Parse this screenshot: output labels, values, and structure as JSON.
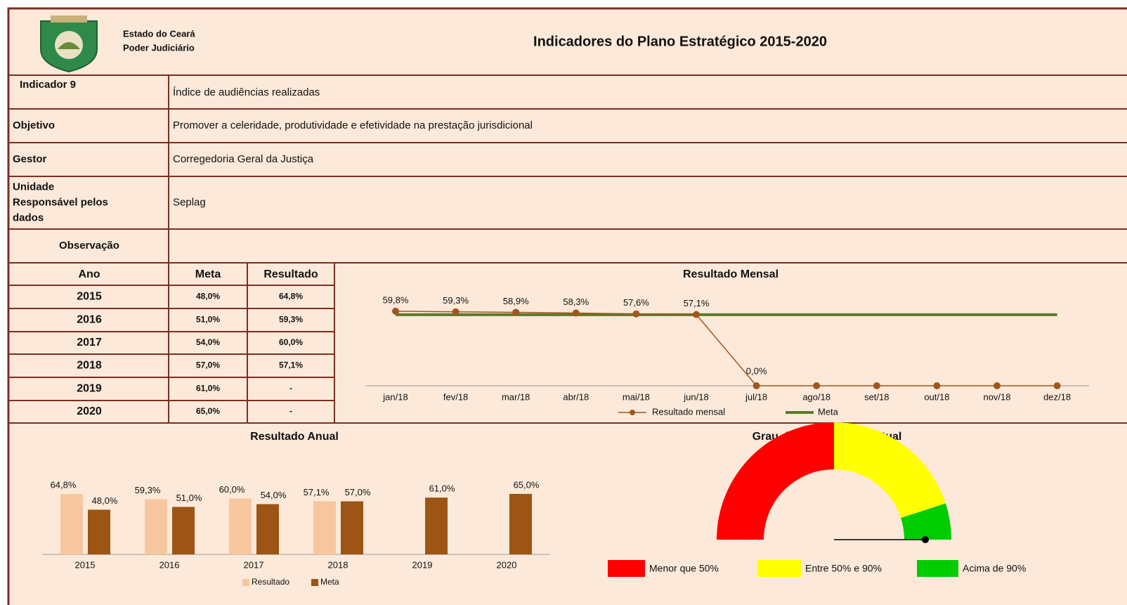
{
  "header": {
    "org_lines": [
      "Estado do Ceará",
      "Poder Judiciário"
    ],
    "title": "Indicadores do Plano Estratégico 2015-2020"
  },
  "info": [
    {
      "label": "Indicador 9",
      "value": "Índice de audiências realizadas"
    },
    {
      "label": "Objetivo",
      "value": "Promover a celeridade, produtividade e efetividade na prestação jurisdicional"
    },
    {
      "label": "Gestor",
      "value": "Corregedoria Geral da Justiça"
    },
    {
      "label": [
        "Unidade",
        "Responsável pelos",
        "dados"
      ],
      "value": "Seplag"
    },
    {
      "label": "Observação"
    }
  ],
  "table": {
    "header": [
      "Ano",
      "Meta",
      "Resultado"
    ],
    "rows": [
      [
        "2015",
        "48,0%",
        "64,8%"
      ],
      [
        "2016",
        "51,0%",
        "59,3%"
      ],
      [
        "2017",
        "54,0%",
        "60,0%"
      ],
      [
        "2018",
        "57,0%",
        "57,1%"
      ],
      [
        "2019",
        "61,0%",
        "-"
      ],
      [
        "2020",
        "65,0%",
        "-"
      ]
    ]
  },
  "chart_data": [
    {
      "type": "line",
      "title": "Resultado Mensal",
      "categories": [
        "jan/18",
        "fev/18",
        "mar/18",
        "abr/18",
        "mai/18",
        "jun/18",
        "jul/18",
        "ago/18",
        "set/18",
        "out/18",
        "nov/18",
        "dez/18"
      ],
      "ylim": [
        0,
        80
      ],
      "series": [
        {
          "name": "Resultado mensal",
          "color": "#a0561e",
          "values": [
            59.8,
            59.3,
            58.9,
            58.3,
            57.6,
            57.1,
            0,
            0,
            0,
            0,
            0,
            0
          ],
          "value_labels": [
            "59,8%",
            "59,3%",
            "58,9%",
            "58,3%",
            "57,6%",
            "57,1%",
            "0,0%",
            null,
            null,
            null,
            null,
            null
          ]
        },
        {
          "name": "Meta",
          "color": "#5b7a2c",
          "values": [
            57,
            57,
            57,
            57,
            57,
            57,
            57,
            57,
            57,
            57,
            57,
            57
          ]
        }
      ]
    },
    {
      "type": "bar",
      "title": "Resultado Anual",
      "categories": [
        "2015",
        "2016",
        "2017",
        "2018",
        "2019",
        "2020"
      ],
      "ylim": [
        0,
        80
      ],
      "series": [
        {
          "name": "Resultado",
          "color": "#f6c79e",
          "values": [
            64.8,
            59.3,
            60.0,
            57.1,
            null,
            null
          ],
          "value_labels": [
            "64,8%",
            "59,3%",
            "60,0%",
            "57,1%",
            null,
            null
          ]
        },
        {
          "name": "Meta",
          "color": "#9c5515",
          "values": [
            48.0,
            51.0,
            54.0,
            57.0,
            61.0,
            65.0
          ],
          "value_labels": [
            "48,0%",
            "51,0%",
            "54,0%",
            "57,0%",
            "61,0%",
            "65,0%"
          ]
        }
      ]
    },
    {
      "type": "gauge",
      "title": "Grau de Cumprimento Atual",
      "range": [
        0,
        100
      ],
      "value": 100,
      "bands": [
        {
          "name": "Menor que 50%",
          "color": "#ff0000",
          "from": 0,
          "to": 50
        },
        {
          "name": "Entre 50% e 90%",
          "color": "#ffff00",
          "from": 50,
          "to": 90
        },
        {
          "name": "Acima de 90%",
          "color": "#00cc00",
          "from": 90,
          "to": 100
        }
      ]
    }
  ]
}
